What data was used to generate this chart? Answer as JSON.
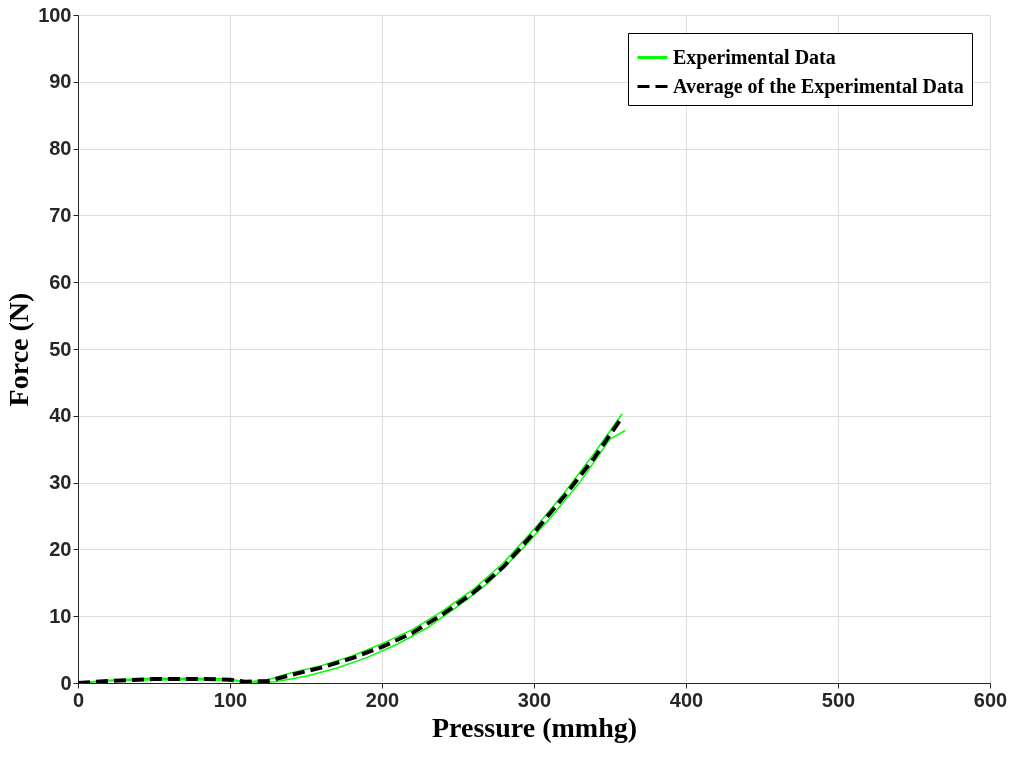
{
  "chart_data": {
    "type": "line",
    "xlabel": "Pressure (mmhg)",
    "ylabel": "Force (N)",
    "xlim": [
      0,
      600
    ],
    "ylim": [
      0,
      100
    ],
    "xticks": [
      0,
      100,
      200,
      300,
      400,
      500,
      600
    ],
    "yticks": [
      0,
      10,
      20,
      30,
      40,
      50,
      60,
      70,
      80,
      90,
      100
    ],
    "grid": true,
    "legend": "top right",
    "series": [
      {
        "name": "Experimental Data",
        "color": "#00ff00",
        "line_style": "solid",
        "x": [
          0,
          20,
          50,
          80,
          100,
          110,
          125,
          140,
          160,
          180,
          200,
          220,
          240,
          260,
          280,
          300,
          320,
          340,
          358
        ],
        "values": [
          0,
          0.4,
          0.7,
          0.7,
          0.6,
          0.1,
          0.5,
          1.5,
          2.6,
          4,
          5.9,
          8,
          10.8,
          14,
          18,
          23,
          28.5,
          34.5,
          40.3
        ]
      },
      {
        "color": "#00ff00",
        "line_style": "solid",
        "x": [
          0,
          20,
          50,
          80,
          100,
          120,
          130,
          150,
          170,
          190,
          210,
          230,
          250,
          270,
          290,
          310,
          330,
          350,
          360
        ],
        "values": [
          0,
          0.3,
          0.5,
          0.5,
          0.4,
          0.1,
          0.2,
          1,
          2.2,
          3.8,
          5.8,
          8.3,
          11.5,
          15,
          19.5,
          24.5,
          30,
          36.5,
          37.8
        ]
      },
      {
        "name": "Average of the Experimental Data",
        "color": "#000000",
        "line_style": "dashed",
        "x": [
          0,
          20,
          50,
          80,
          100,
          110,
          125,
          140,
          160,
          180,
          200,
          220,
          240,
          260,
          280,
          300,
          320,
          340,
          357
        ],
        "values": [
          0,
          0.3,
          0.6,
          0.6,
          0.5,
          0.2,
          0.3,
          1.2,
          2.3,
          3.7,
          5.4,
          7.5,
          10.3,
          13.5,
          17.4,
          22.5,
          28,
          33.8,
          39.5
        ]
      }
    ]
  }
}
